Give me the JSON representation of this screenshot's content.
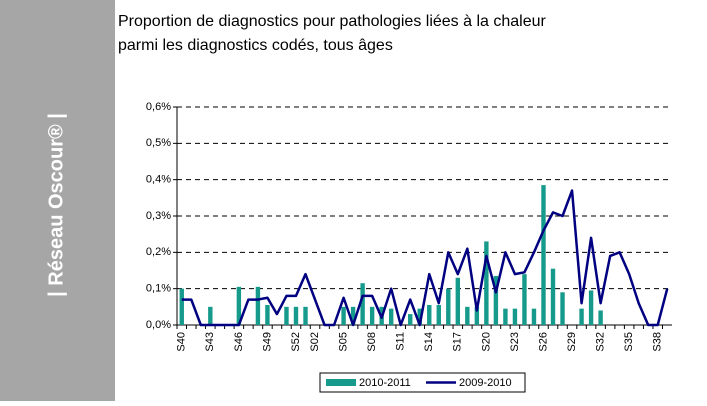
{
  "banner": "| Réseau Oscour® |",
  "chart_data": {
    "type": "bar-line",
    "title": "Proportion de diagnostics pour pathologies liées à la chaleur",
    "subtitle": "parmi les diagnostics codés, tous âges",
    "categories": [
      "S40",
      null,
      null,
      "S43",
      null,
      null,
      "S46",
      null,
      null,
      "S49",
      null,
      null,
      "S52",
      null,
      "S02",
      null,
      null,
      "S05",
      null,
      null,
      "S08",
      null,
      null,
      "S11",
      null,
      null,
      "S14",
      null,
      null,
      "S17",
      null,
      null,
      "S20",
      null,
      null,
      "S23",
      null,
      null,
      "S26",
      null,
      null,
      "S29",
      null,
      null,
      "S32",
      null,
      null,
      "S35",
      null,
      null,
      "S38",
      null
    ],
    "series": [
      {
        "name": "2010-2011",
        "type": "bar",
        "color": "#159a8c",
        "values": [
          0.1,
          0,
          0,
          0.05,
          0,
          0,
          0.105,
          0,
          0.105,
          0.055,
          0,
          0.05,
          0.05,
          0.05,
          0,
          0,
          0,
          0.05,
          0.05,
          0.115,
          0.05,
          0.05,
          0.045,
          0,
          0.03,
          0.045,
          0.055,
          0.055,
          0.1,
          0.13,
          0.05,
          0.05,
          0.23,
          0.135,
          0.045,
          0.045,
          0.14,
          0.045,
          0.385,
          0.155,
          0.09,
          0,
          0.045,
          0.095,
          0.04,
          null,
          null,
          null,
          null,
          null,
          null,
          null
        ]
      },
      {
        "name": "2009-2010",
        "type": "line",
        "color": "#000080",
        "values": [
          0.07,
          0.07,
          0,
          0,
          0,
          0,
          0,
          0.07,
          0.07,
          0.075,
          0.03,
          0.08,
          0.08,
          0.14,
          0.07,
          0,
          0,
          0.075,
          0,
          0.08,
          0.08,
          0.02,
          0.1,
          0,
          0.07,
          0,
          0.14,
          0.06,
          0.2,
          0.14,
          0.21,
          0.04,
          0.19,
          0.09,
          0.2,
          0.14,
          0.145,
          0.2,
          0.26,
          0.31,
          0.3,
          0.37,
          0.06,
          0.24,
          0.06,
          0.19,
          0.2,
          0.14,
          0.06,
          0,
          0,
          0.1
        ]
      }
    ],
    "ylim": [
      0,
      0.6
    ],
    "yticks": [
      {
        "value": 0,
        "label": "0,0%"
      },
      {
        "value": 0.1,
        "label": "0,1%"
      },
      {
        "value": 0.2,
        "label": "0,2%"
      },
      {
        "value": 0.3,
        "label": "0,3%"
      },
      {
        "value": 0.4,
        "label": "0,4%"
      },
      {
        "value": 0.5,
        "label": "0,5%"
      },
      {
        "value": 0.6,
        "label": "0,6%"
      }
    ],
    "grid": true
  }
}
